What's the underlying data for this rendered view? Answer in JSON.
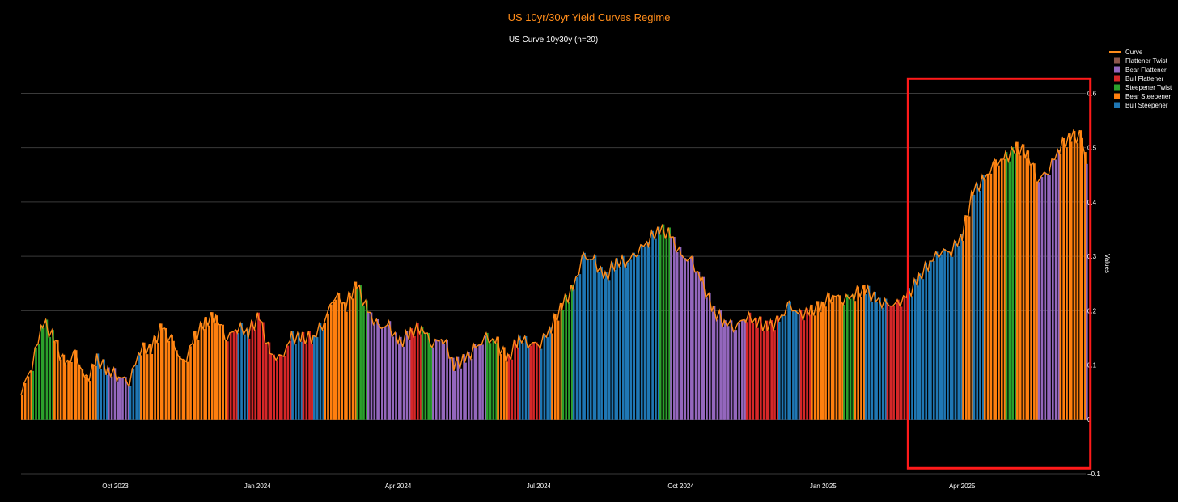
{
  "chart_data": {
    "type": "bar",
    "title": "US 10yr/30yr Yield Curves Regime",
    "subtitle": "US Curve 10y30y (n=20)",
    "ylabel": "Values",
    "xlabel": "",
    "ylim": [
      -0.1,
      0.62
    ],
    "yticks": [
      0.6,
      0.5,
      0.4,
      0.3,
      0.2,
      0.1,
      0,
      -0.1
    ],
    "ytick_labels": [
      "0.6",
      "0.5",
      "0.4",
      "0.3",
      "0.2",
      "0.1",
      "0",
      "−0.1"
    ],
    "xlim": [
      "2023-08-01",
      "2025-06-20"
    ],
    "xticks": [
      {
        "date": "2023-10-01",
        "label": "Oct 2023"
      },
      {
        "date": "2024-01-01",
        "label": "Jan 2024"
      },
      {
        "date": "2024-04-01",
        "label": "Apr 2024"
      },
      {
        "date": "2024-07-01",
        "label": "Jul 2024"
      },
      {
        "date": "2024-10-01",
        "label": "Oct 2024"
      },
      {
        "date": "2025-01-01",
        "label": "Jan 2025"
      },
      {
        "date": "2025-04-01",
        "label": "Apr 2025"
      }
    ],
    "grid": true,
    "legend_position": "right",
    "legend": [
      {
        "name": "Curve",
        "kind": "line",
        "color": "#ff8c1a"
      },
      {
        "name": "Flattener Twist",
        "kind": "bar",
        "color": "#8c564b"
      },
      {
        "name": "Bear Flattener",
        "kind": "bar",
        "color": "#9467bd"
      },
      {
        "name": "Bull Flattener",
        "kind": "bar",
        "color": "#d62728"
      },
      {
        "name": "Steepener Twist",
        "kind": "bar",
        "color": "#2ca02c"
      },
      {
        "name": "Bear Steepener",
        "kind": "bar",
        "color": "#ff7f0e"
      },
      {
        "name": "Bull Steepener",
        "kind": "bar",
        "color": "#1f77b4"
      }
    ],
    "highlight_box": {
      "from": "2025-02-25",
      "to": "2025-06-23",
      "ymin": -0.09,
      "ymax": 0.627,
      "color": "#ff1a1a"
    },
    "series": [
      {
        "date": "2023-08-01",
        "value": 0.05,
        "regime": "Bear Steepener"
      },
      {
        "date": "2023-08-08",
        "value": 0.1,
        "regime": "Steepener Twist"
      },
      {
        "date": "2023-08-15",
        "value": 0.18,
        "regime": "Steepener Twist"
      },
      {
        "date": "2023-08-22",
        "value": 0.15,
        "regime": "Bear Steepener"
      },
      {
        "date": "2023-08-29",
        "value": 0.1,
        "regime": "Bear Steepener"
      },
      {
        "date": "2023-09-05",
        "value": 0.12,
        "regime": "Bear Steepener"
      },
      {
        "date": "2023-09-12",
        "value": 0.07,
        "regime": "Bear Steepener"
      },
      {
        "date": "2023-09-19",
        "value": 0.11,
        "regime": "Bull Steepener"
      },
      {
        "date": "2023-09-26",
        "value": 0.09,
        "regime": "Bear Flattener"
      },
      {
        "date": "2023-10-03",
        "value": 0.08,
        "regime": "Bear Flattener"
      },
      {
        "date": "2023-10-10",
        "value": 0.07,
        "regime": "Bull Steepener"
      },
      {
        "date": "2023-10-17",
        "value": 0.13,
        "regime": "Bear Steepener"
      },
      {
        "date": "2023-10-24",
        "value": 0.13,
        "regime": "Bear Steepener"
      },
      {
        "date": "2023-10-31",
        "value": 0.17,
        "regime": "Bear Steepener"
      },
      {
        "date": "2023-11-07",
        "value": 0.14,
        "regime": "Bear Steepener"
      },
      {
        "date": "2023-11-14",
        "value": 0.1,
        "regime": "Bear Steepener"
      },
      {
        "date": "2023-11-21",
        "value": 0.15,
        "regime": "Bear Steepener"
      },
      {
        "date": "2023-11-28",
        "value": 0.18,
        "regime": "Bear Steepener"
      },
      {
        "date": "2023-12-05",
        "value": 0.19,
        "regime": "Bear Steepener"
      },
      {
        "date": "2023-12-12",
        "value": 0.15,
        "regime": "Bull Flattener"
      },
      {
        "date": "2023-12-19",
        "value": 0.17,
        "regime": "Bull Steepener"
      },
      {
        "date": "2023-12-26",
        "value": 0.16,
        "regime": "Bull Flattener"
      },
      {
        "date": "2024-01-02",
        "value": 0.19,
        "regime": "Bull Flattener"
      },
      {
        "date": "2024-01-09",
        "value": 0.12,
        "regime": "Bull Flattener"
      },
      {
        "date": "2024-01-16",
        "value": 0.11,
        "regime": "Bull Flattener"
      },
      {
        "date": "2024-01-23",
        "value": 0.15,
        "regime": "Bull Steepener"
      },
      {
        "date": "2024-01-30",
        "value": 0.15,
        "regime": "Bull Flattener"
      },
      {
        "date": "2024-02-06",
        "value": 0.15,
        "regime": "Bull Steepener"
      },
      {
        "date": "2024-02-13",
        "value": 0.18,
        "regime": "Bear Steepener"
      },
      {
        "date": "2024-02-20",
        "value": 0.23,
        "regime": "Bear Steepener"
      },
      {
        "date": "2024-02-27",
        "value": 0.21,
        "regime": "Bear Steepener"
      },
      {
        "date": "2024-03-05",
        "value": 0.25,
        "regime": "Steepener Twist"
      },
      {
        "date": "2024-03-12",
        "value": 0.2,
        "regime": "Bear Flattener"
      },
      {
        "date": "2024-03-19",
        "value": 0.17,
        "regime": "Bear Flattener"
      },
      {
        "date": "2024-03-26",
        "value": 0.17,
        "regime": "Bear Flattener"
      },
      {
        "date": "2024-04-02",
        "value": 0.14,
        "regime": "Bear Flattener"
      },
      {
        "date": "2024-04-09",
        "value": 0.16,
        "regime": "Bull Flattener"
      },
      {
        "date": "2024-04-16",
        "value": 0.17,
        "regime": "Steepener Twist"
      },
      {
        "date": "2024-04-23",
        "value": 0.14,
        "regime": "Bear Flattener"
      },
      {
        "date": "2024-04-30",
        "value": 0.15,
        "regime": "Bear Flattener"
      },
      {
        "date": "2024-05-07",
        "value": 0.1,
        "regime": "Bear Flattener"
      },
      {
        "date": "2024-05-14",
        "value": 0.11,
        "regime": "Bear Flattener"
      },
      {
        "date": "2024-05-21",
        "value": 0.13,
        "regime": "Bear Flattener"
      },
      {
        "date": "2024-05-28",
        "value": 0.15,
        "regime": "Steepener Twist"
      },
      {
        "date": "2024-06-04",
        "value": 0.14,
        "regime": "Bear Steepener"
      },
      {
        "date": "2024-06-11",
        "value": 0.11,
        "regime": "Bull Flattener"
      },
      {
        "date": "2024-06-18",
        "value": 0.15,
        "regime": "Bull Steepener"
      },
      {
        "date": "2024-06-25",
        "value": 0.14,
        "regime": "Bull Flattener"
      },
      {
        "date": "2024-07-02",
        "value": 0.14,
        "regime": "Bull Steepener"
      },
      {
        "date": "2024-07-09",
        "value": 0.17,
        "regime": "Bear Steepener"
      },
      {
        "date": "2024-07-16",
        "value": 0.21,
        "regime": "Steepener Twist"
      },
      {
        "date": "2024-07-23",
        "value": 0.24,
        "regime": "Bull Steepener"
      },
      {
        "date": "2024-07-30",
        "value": 0.3,
        "regime": "Bull Steepener"
      },
      {
        "date": "2024-08-06",
        "value": 0.29,
        "regime": "Bull Steepener"
      },
      {
        "date": "2024-08-13",
        "value": 0.26,
        "regime": "Bull Steepener"
      },
      {
        "date": "2024-08-20",
        "value": 0.29,
        "regime": "Bull Steepener"
      },
      {
        "date": "2024-08-27",
        "value": 0.29,
        "regime": "Bull Steepener"
      },
      {
        "date": "2024-09-03",
        "value": 0.31,
        "regime": "Bull Steepener"
      },
      {
        "date": "2024-09-10",
        "value": 0.33,
        "regime": "Bull Steepener"
      },
      {
        "date": "2024-09-17",
        "value": 0.35,
        "regime": "Steepener Twist"
      },
      {
        "date": "2024-09-24",
        "value": 0.34,
        "regime": "Bear Flattener"
      },
      {
        "date": "2024-10-01",
        "value": 0.3,
        "regime": "Bear Flattener"
      },
      {
        "date": "2024-10-08",
        "value": 0.29,
        "regime": "Bear Flattener"
      },
      {
        "date": "2024-10-15",
        "value": 0.25,
        "regime": "Bear Flattener"
      },
      {
        "date": "2024-10-22",
        "value": 0.2,
        "regime": "Bear Flattener"
      },
      {
        "date": "2024-10-29",
        "value": 0.18,
        "regime": "Bear Flattener"
      },
      {
        "date": "2024-11-05",
        "value": 0.17,
        "regime": "Bear Flattener"
      },
      {
        "date": "2024-11-12",
        "value": 0.19,
        "regime": "Bull Flattener"
      },
      {
        "date": "2024-11-19",
        "value": 0.18,
        "regime": "Bull Flattener"
      },
      {
        "date": "2024-11-26",
        "value": 0.17,
        "regime": "Bull Flattener"
      },
      {
        "date": "2024-12-03",
        "value": 0.18,
        "regime": "Bull Steepener"
      },
      {
        "date": "2024-12-10",
        "value": 0.21,
        "regime": "Bull Steepener"
      },
      {
        "date": "2024-12-17",
        "value": 0.19,
        "regime": "Bull Flattener"
      },
      {
        "date": "2024-12-24",
        "value": 0.2,
        "regime": "Bear Steepener"
      },
      {
        "date": "2024-12-31",
        "value": 0.21,
        "regime": "Bear Steepener"
      },
      {
        "date": "2025-01-07",
        "value": 0.23,
        "regime": "Bear Steepener"
      },
      {
        "date": "2025-01-14",
        "value": 0.22,
        "regime": "Steepener Twist"
      },
      {
        "date": "2025-01-21",
        "value": 0.23,
        "regime": "Bear Steepener"
      },
      {
        "date": "2025-01-28",
        "value": 0.24,
        "regime": "Bull Steepener"
      },
      {
        "date": "2025-02-04",
        "value": 0.22,
        "regime": "Bull Steepener"
      },
      {
        "date": "2025-02-11",
        "value": 0.21,
        "regime": "Bull Flattener"
      },
      {
        "date": "2025-02-18",
        "value": 0.21,
        "regime": "Bull Flattener"
      },
      {
        "date": "2025-02-25",
        "value": 0.23,
        "regime": "Bull Steepener"
      },
      {
        "date": "2025-03-04",
        "value": 0.26,
        "regime": "Bull Steepener"
      },
      {
        "date": "2025-03-11",
        "value": 0.29,
        "regime": "Bull Steepener"
      },
      {
        "date": "2025-03-18",
        "value": 0.31,
        "regime": "Bull Steepener"
      },
      {
        "date": "2025-03-25",
        "value": 0.31,
        "regime": "Bull Steepener"
      },
      {
        "date": "2025-04-01",
        "value": 0.34,
        "regime": "Bear Steepener"
      },
      {
        "date": "2025-04-08",
        "value": 0.42,
        "regime": "Bull Steepener"
      },
      {
        "date": "2025-04-15",
        "value": 0.44,
        "regime": "Bear Steepener"
      },
      {
        "date": "2025-04-22",
        "value": 0.47,
        "regime": "Bear Steepener"
      },
      {
        "date": "2025-04-29",
        "value": 0.48,
        "regime": "Steepener Twist"
      },
      {
        "date": "2025-05-06",
        "value": 0.5,
        "regime": "Bear Steepener"
      },
      {
        "date": "2025-05-13",
        "value": 0.49,
        "regime": "Bear Steepener"
      },
      {
        "date": "2025-05-20",
        "value": 0.44,
        "regime": "Bear Flattener"
      },
      {
        "date": "2025-05-27",
        "value": 0.46,
        "regime": "Bear Flattener"
      },
      {
        "date": "2025-06-03",
        "value": 0.5,
        "regime": "Bear Steepener"
      },
      {
        "date": "2025-06-10",
        "value": 0.52,
        "regime": "Bear Steepener"
      },
      {
        "date": "2025-06-17",
        "value": 0.52,
        "regime": "Bear Steepener"
      },
      {
        "date": "2025-06-20",
        "value": 0.47,
        "regime": "Bear Flattener"
      }
    ]
  }
}
